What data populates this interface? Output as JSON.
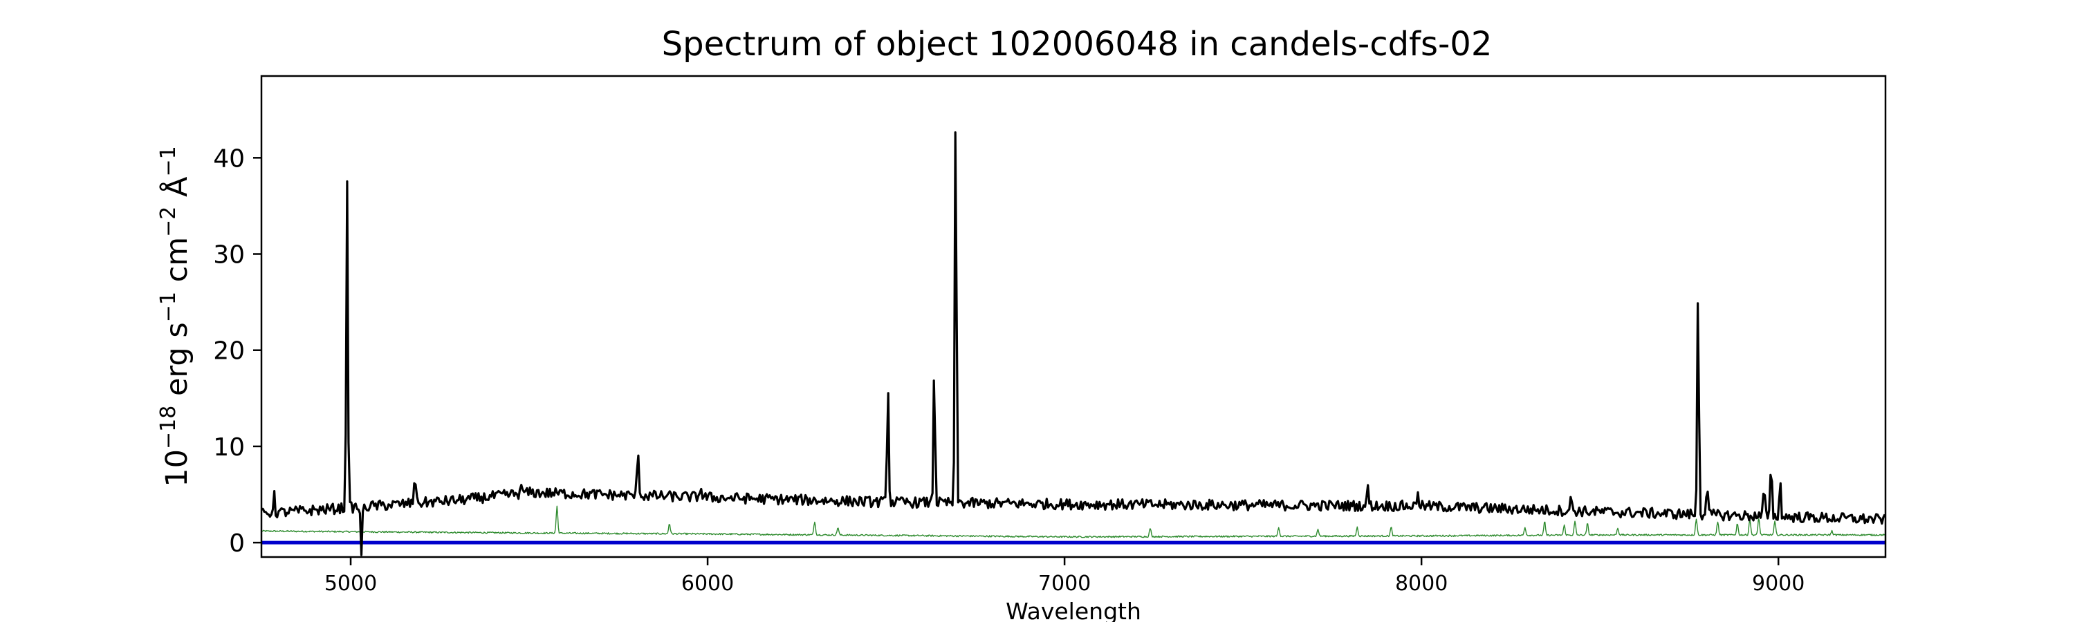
{
  "chart_data": {
    "type": "line",
    "title": "Spectrum of object 102006048 in candels-cdfs-02",
    "xlabel": "Wavelength",
    "ylabel_base": "10",
    "ylabel_exp": "−18",
    "ylabel_units": [
      {
        "text": " erg s"
      },
      {
        "text": "−1",
        "sup": true
      },
      {
        "text": " cm"
      },
      {
        "text": "−2",
        "sup": true
      },
      {
        "text": " Å"
      },
      {
        "text": "−1",
        "sup": true
      }
    ],
    "xlim": [
      4750,
      9300
    ],
    "ylim": [
      -1.5,
      48.5
    ],
    "grid": false,
    "x_ticks": [
      5000,
      6000,
      7000,
      8000,
      9000
    ],
    "x_tick_labels": [
      "5000",
      "6000",
      "7000",
      "8000",
      "9000"
    ],
    "y_ticks": [
      0,
      10,
      20,
      30,
      40
    ],
    "y_tick_labels": [
      "0",
      "10",
      "20",
      "30",
      "40"
    ],
    "colors": {
      "flux": "#000000",
      "error": "#2e8b2e",
      "zero": "#0000cc"
    },
    "series": [
      {
        "key": "flux",
        "continuum": [
          [
            4750,
            3.0
          ],
          [
            5300,
            4.4
          ],
          [
            5500,
            5.2
          ],
          [
            6000,
            4.7
          ],
          [
            6500,
            4.2
          ],
          [
            7000,
            4.0
          ],
          [
            7500,
            3.9
          ],
          [
            8000,
            3.8
          ],
          [
            8500,
            3.2
          ],
          [
            9000,
            2.7
          ],
          [
            9300,
            2.4
          ]
        ],
        "noise": 0.55,
        "lines": [
          [
            4990,
            38.0
          ],
          [
            5180,
            7.5
          ],
          [
            5805,
            10.0
          ],
          [
            6505,
            17.0
          ],
          [
            6635,
            18.5
          ],
          [
            6695,
            46.5
          ],
          [
            7850,
            6.0
          ],
          [
            8775,
            27.5
          ],
          [
            8800,
            6.3
          ],
          [
            8980,
            8.5
          ],
          [
            9005,
            6.3
          ],
          [
            5030,
            -1.0
          ],
          [
            4785,
            5.0
          ],
          [
            5480,
            5.8
          ],
          [
            5980,
            6.0
          ],
          [
            7990,
            5.6
          ],
          [
            8420,
            4.8
          ],
          [
            8960,
            5.8
          ]
        ]
      },
      {
        "key": "error",
        "continuum": [
          [
            4750,
            1.2
          ],
          [
            5500,
            1.0
          ],
          [
            6000,
            0.9
          ],
          [
            7000,
            0.6
          ],
          [
            8000,
            0.7
          ],
          [
            8500,
            0.8
          ],
          [
            9300,
            0.8
          ]
        ],
        "noise": 0.08,
        "lines": [
          [
            5578,
            3.8
          ],
          [
            5893,
            2.0
          ],
          [
            6300,
            2.2
          ],
          [
            6365,
            1.6
          ],
          [
            7240,
            1.5
          ],
          [
            7600,
            1.6
          ],
          [
            7710,
            1.4
          ],
          [
            7820,
            1.6
          ],
          [
            7915,
            1.6
          ],
          [
            8290,
            1.6
          ],
          [
            8345,
            2.2
          ],
          [
            8400,
            1.8
          ],
          [
            8430,
            2.2
          ],
          [
            8465,
            2.0
          ],
          [
            8550,
            1.5
          ],
          [
            8770,
            2.5
          ],
          [
            8830,
            2.2
          ],
          [
            8885,
            2.0
          ],
          [
            8920,
            2.5
          ],
          [
            8945,
            2.6
          ],
          [
            8990,
            2.2
          ],
          [
            9150,
            1.2
          ]
        ]
      }
    ],
    "zero_line": 0
  }
}
